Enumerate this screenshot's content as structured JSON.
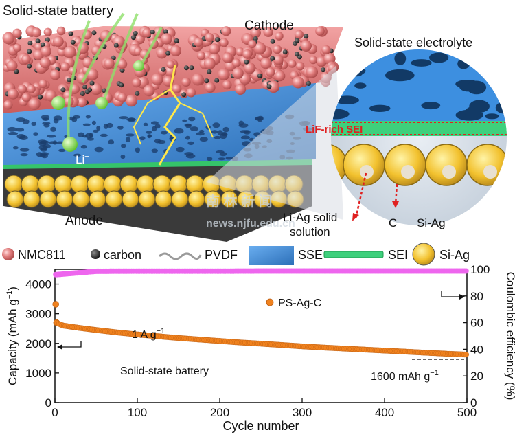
{
  "schematic": {
    "title": "Solid-state battery",
    "cathode": "Cathode",
    "electrolyte": "Solid-state electrolyte",
    "anode": "Anode",
    "sei": "LiF-rich SEI",
    "ion": "Li",
    "ion_sup": "+",
    "li_ag_line1": "Li-Ag solid",
    "li_ag_line2": "solution",
    "c_label": "C",
    "siag_label": "Si-Ag",
    "watermark_line1": "南 林 新 闻",
    "watermark_line2": "news.njfu.edu.cn"
  },
  "legend": {
    "items": [
      {
        "label": "NMC811",
        "icon": "nmc811-particle-icon",
        "color": "#e07c7c"
      },
      {
        "label": "carbon",
        "icon": "carbon-particle-icon",
        "color": "#333333"
      },
      {
        "label": "PVDF",
        "icon": "pvdf-binder-icon",
        "color": "#9a9a9a"
      },
      {
        "label": "SSE",
        "icon": "sse-block-icon",
        "color": "#4a90d9"
      },
      {
        "label": "SEI",
        "icon": "sei-film-icon",
        "color": "#2ecc71"
      },
      {
        "label": "Si-Ag",
        "icon": "si-ag-particle-icon",
        "color": "#f2c12e"
      }
    ]
  },
  "chart_data": {
    "type": "scatter",
    "xlabel": "Cycle number",
    "ylabel_left": "Capacity (mAh g",
    "ylabel_left_sup": "−1",
    "ylabel_left_end": ")",
    "ylabel_right": "Coulombic efficiency (%)",
    "xlim": [
      0,
      500
    ],
    "ylim_left": [
      0,
      4500
    ],
    "ylim_right": [
      0,
      100
    ],
    "x_ticks": [
      0,
      100,
      200,
      300,
      400,
      500
    ],
    "y_left_ticks": [
      0,
      1000,
      2000,
      3000,
      4000
    ],
    "y_right_ticks": [
      0,
      20,
      40,
      60,
      80,
      100
    ],
    "grid": false,
    "legend_label": "PS-Ag-C",
    "legend_color": "#f0821e",
    "annotations": {
      "rate": "1 A g",
      "rate_sup": "−1",
      "system": "Solid-state battery",
      "final_capacity": "1600 mAh g",
      "final_capacity_sup": "−1"
    },
    "series": [
      {
        "name": "PS-Ag-C",
        "axis": "left",
        "color": "#f0821e",
        "x": [
          1,
          2
        ],
        "y": [
          3320,
          2700
        ]
      },
      {
        "name": "PS-Ag-C",
        "axis": "left",
        "color": "#f0821e",
        "x": [
          3,
          10,
          20,
          30,
          50,
          75,
          100,
          125,
          150,
          175,
          200,
          225,
          250,
          275,
          300,
          325,
          350,
          375,
          400,
          425,
          450,
          475,
          500
        ],
        "y": [
          2680,
          2600,
          2560,
          2520,
          2450,
          2370,
          2300,
          2240,
          2180,
          2130,
          2080,
          2030,
          1990,
          1945,
          1900,
          1860,
          1825,
          1790,
          1755,
          1720,
          1685,
          1650,
          1620
        ]
      },
      {
        "name": "PS-Ag-C",
        "axis": "right",
        "color": "#ee66ee",
        "x": [
          1,
          50,
          100,
          150,
          200,
          250,
          300,
          350,
          400,
          450,
          500
        ],
        "y": [
          96,
          98.5,
          98.6,
          98.6,
          98.6,
          98.7,
          98.7,
          98.7,
          98.7,
          98.7,
          98.7
        ]
      }
    ]
  }
}
